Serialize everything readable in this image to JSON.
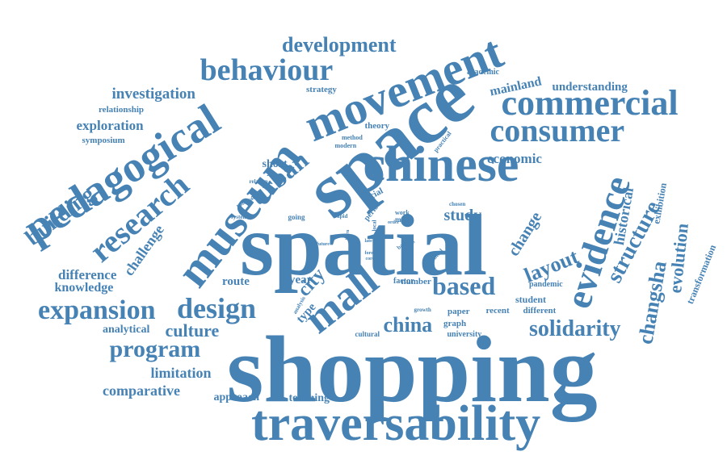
{
  "style": {
    "color": "#4682b4",
    "background": "#ffffff"
  },
  "words": [
    {
      "text": "shopping",
      "weight": 100,
      "orientation": "horizontal"
    },
    {
      "text": "spatial",
      "weight": 95,
      "orientation": "horizontal"
    },
    {
      "text": "space",
      "weight": 85,
      "orientation": "diagonal"
    },
    {
      "text": "traversability",
      "weight": 72,
      "orientation": "horizontal"
    },
    {
      "text": "chinese",
      "weight": 62,
      "orientation": "horizontal"
    },
    {
      "text": "movement",
      "weight": 60,
      "orientation": "diagonal"
    },
    {
      "text": "museum",
      "weight": 60,
      "orientation": "diagonal"
    },
    {
      "text": "pedagogical",
      "weight": 55,
      "orientation": "diagonal"
    },
    {
      "text": "commercial",
      "weight": 48,
      "orientation": "horizontal"
    },
    {
      "text": "mall",
      "weight": 50,
      "orientation": "diagonal"
    },
    {
      "text": "evidence",
      "weight": 45,
      "orientation": "vertical"
    },
    {
      "text": "consumer",
      "weight": 44,
      "orientation": "horizontal"
    },
    {
      "text": "research",
      "weight": 42,
      "orientation": "diagonal"
    },
    {
      "text": "behaviour",
      "weight": 40,
      "orientation": "horizontal"
    },
    {
      "text": "design",
      "weight": 38,
      "orientation": "horizontal"
    },
    {
      "text": "expansion",
      "weight": 35,
      "orientation": "horizontal"
    },
    {
      "text": "based",
      "weight": 34,
      "orientation": "horizontal"
    },
    {
      "text": "urban",
      "weight": 32,
      "orientation": "diagonal"
    },
    {
      "text": "solidarity",
      "weight": 30,
      "orientation": "horizontal"
    },
    {
      "text": "program",
      "weight": 32,
      "orientation": "horizontal"
    },
    {
      "text": "development",
      "weight": 28,
      "orientation": "horizontal"
    },
    {
      "text": "building",
      "weight": 28,
      "orientation": "diagonal"
    },
    {
      "text": "structure",
      "weight": 28,
      "orientation": "diagonal"
    },
    {
      "text": "changsha",
      "weight": 26,
      "orientation": "vertical"
    },
    {
      "text": "layout",
      "weight": 26,
      "orientation": "diagonal"
    },
    {
      "text": "china",
      "weight": 26,
      "orientation": "horizontal"
    },
    {
      "text": "culture",
      "weight": 24,
      "orientation": "horizontal"
    },
    {
      "text": "city",
      "weight": 24,
      "orientation": "diagonal"
    },
    {
      "text": "evolution",
      "weight": 22,
      "orientation": "vertical"
    },
    {
      "text": "historical",
      "weight": 20,
      "orientation": "vertical"
    },
    {
      "text": "challenge",
      "weight": 20,
      "orientation": "diagonal"
    },
    {
      "text": "change",
      "weight": 20,
      "orientation": "diagonal"
    },
    {
      "text": "study",
      "weight": 22,
      "orientation": "horizontal"
    },
    {
      "text": "investigation",
      "weight": 21,
      "orientation": "horizontal"
    },
    {
      "text": "exploration",
      "weight": 18,
      "orientation": "horizontal"
    },
    {
      "text": "limitation",
      "weight": 20,
      "orientation": "horizontal"
    },
    {
      "text": "comparative",
      "weight": 20,
      "orientation": "horizontal"
    },
    {
      "text": "difference",
      "weight": 18,
      "orientation": "horizontal"
    },
    {
      "text": "knowledge",
      "weight": 17,
      "orientation": "horizontal"
    },
    {
      "text": "economic",
      "weight": 18,
      "orientation": "horizontal"
    },
    {
      "text": "mainland",
      "weight": 17,
      "orientation": "diagonal"
    },
    {
      "text": "understanding",
      "weight": 16,
      "orientation": "horizontal"
    },
    {
      "text": "route",
      "weight": 16,
      "orientation": "horizontal"
    },
    {
      "text": "year",
      "weight": 16,
      "orientation": "horizontal"
    },
    {
      "text": "type",
      "weight": 16,
      "orientation": "diagonal"
    },
    {
      "text": "analytical",
      "weight": 15,
      "orientation": "horizontal"
    },
    {
      "text": "approach",
      "weight": 15,
      "orientation": "horizontal"
    },
    {
      "text": "teaching",
      "weight": 15,
      "orientation": "horizontal"
    },
    {
      "text": "short",
      "weight": 15,
      "orientation": "horizontal"
    },
    {
      "text": "exhibition",
      "weight": 13,
      "orientation": "vertical"
    },
    {
      "text": "transformation",
      "weight": 13,
      "orientation": "diagonal"
    },
    {
      "text": "student",
      "weight": 13,
      "orientation": "horizontal"
    },
    {
      "text": "paper",
      "weight": 12,
      "orientation": "horizontal"
    },
    {
      "text": "recent",
      "weight": 12,
      "orientation": "horizontal"
    },
    {
      "text": "different",
      "weight": 12,
      "orientation": "horizontal"
    },
    {
      "text": "pandemic",
      "weight": 11,
      "orientation": "horizontal"
    },
    {
      "text": "graph",
      "weight": 11,
      "orientation": "horizontal"
    },
    {
      "text": "university",
      "weight": 10,
      "orientation": "horizontal"
    },
    {
      "text": "relationship",
      "weight": 12,
      "orientation": "horizontal"
    },
    {
      "text": "symposium",
      "weight": 11,
      "orientation": "horizontal"
    },
    {
      "text": "strategy",
      "weight": 11,
      "orientation": "horizontal"
    },
    {
      "text": "theory",
      "weight": 11,
      "orientation": "horizontal"
    },
    {
      "text": "academic",
      "weight": 10,
      "orientation": "horizontal"
    },
    {
      "text": "social",
      "weight": 11,
      "orientation": "diagonal"
    },
    {
      "text": "number",
      "weight": 11,
      "orientation": "horizontal"
    },
    {
      "text": "factor",
      "weight": 10,
      "orientation": "horizontal"
    },
    {
      "text": "going",
      "weight": 9,
      "orientation": "horizontal"
    },
    {
      "text": "period",
      "weight": 10,
      "orientation": "diagonal"
    },
    {
      "text": "practical",
      "weight": 8,
      "orientation": "diagonal"
    },
    {
      "text": "method",
      "weight": 8,
      "orientation": "horizontal"
    },
    {
      "text": "modern",
      "weight": 8,
      "orientation": "horizontal"
    },
    {
      "text": "relation",
      "weight": 7,
      "orientation": "horizontal"
    },
    {
      "text": "political",
      "weight": 7,
      "orientation": "diagonal"
    },
    {
      "text": "system",
      "weight": 7,
      "orientation": "horizontal"
    },
    {
      "text": "chosen",
      "weight": 7,
      "orientation": "horizontal"
    },
    {
      "text": "work",
      "weight": 8,
      "orientation": "horizontal"
    },
    {
      "text": "more",
      "weight": 9,
      "orientation": "horizontal"
    },
    {
      "text": "rapid",
      "weight": 7,
      "orientation": "horizontal"
    },
    {
      "text": "born",
      "weight": 6,
      "orientation": "vertical"
    },
    {
      "text": "future",
      "weight": 6,
      "orientation": "horizontal"
    },
    {
      "text": "late",
      "weight": 6,
      "orientation": "horizontal"
    },
    {
      "text": "form",
      "weight": 6,
      "orientation": "horizontal"
    },
    {
      "text": "core",
      "weight": 6,
      "orientation": "horizontal"
    },
    {
      "text": "local",
      "weight": 7,
      "orientation": "vertical"
    },
    {
      "text": "basic",
      "weight": 7,
      "orientation": "diagonal"
    },
    {
      "text": "model",
      "weight": 6,
      "orientation": "diagonal"
    },
    {
      "text": "central",
      "weight": 7,
      "orientation": "diagonal"
    },
    {
      "text": "order",
      "weight": 6,
      "orientation": "horizontal"
    },
    {
      "text": "analysis",
      "weight": 7,
      "orientation": "diagonal"
    },
    {
      "text": "cultural",
      "weight": 9,
      "orientation": "horizontal"
    },
    {
      "text": "growth",
      "weight": 7,
      "orientation": "horizontal"
    }
  ]
}
